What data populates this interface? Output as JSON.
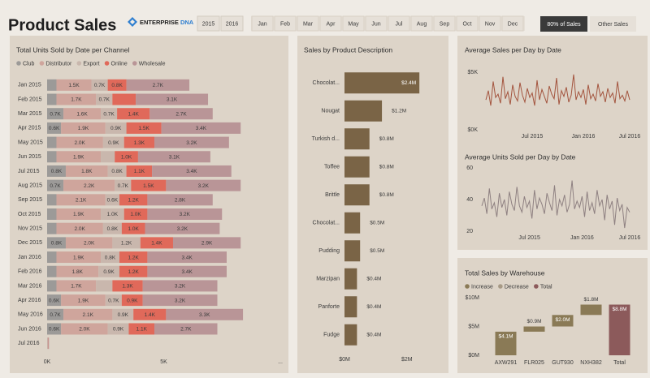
{
  "header": {
    "title": "Product Sales",
    "logo": [
      "ENTERPRISE",
      "DNA"
    ]
  },
  "slicers": {
    "years": [
      "2015",
      "2016"
    ],
    "months": [
      "Jan",
      "Feb",
      "Mar",
      "Apr",
      "May",
      "Jun",
      "Jul",
      "Aug",
      "Sep",
      "Oct",
      "Nov",
      "Dec"
    ],
    "buttons": [
      "80% of Sales",
      "Other Sales"
    ]
  },
  "chart_data": [
    {
      "type": "bar",
      "orientation": "horizontal",
      "stacked": true,
      "title": "Total Units Sold by Date per Channel",
      "categories": [
        "Jan 2015",
        "Feb 2015",
        "Mar 2015",
        "Apr 2015",
        "May 2015",
        "Jun 2015",
        "Jul 2015",
        "Aug 2015",
        "Sep 2015",
        "Oct 2015",
        "Nov 2015",
        "Dec 2015",
        "Jan 2016",
        "Feb 2016",
        "Mar 2016",
        "Apr 2016",
        "May 2016",
        "Jun 2016",
        "Jul 2016"
      ],
      "series": [
        {
          "name": "Club",
          "color": "#9c9a98",
          "values": [
            400,
            400,
            700,
            600,
            400,
            400,
            800,
            700,
            400,
            400,
            400,
            800,
            400,
            400,
            400,
            600,
            700,
            600,
            10
          ],
          "value_labels": [
            null,
            null,
            "0.7K",
            "0.6K",
            null,
            null,
            "0.8K",
            "0.7K",
            null,
            null,
            null,
            "0.8K",
            null,
            null,
            null,
            "0.6K",
            "0.7K",
            "0.6K",
            null
          ]
        },
        {
          "name": "Distributor",
          "color": "#cfa59c",
          "values": [
            1500,
            1700,
            1600,
            1900,
            2000,
            1900,
            1800,
            2200,
            2100,
            1900,
            2000,
            2000,
            1900,
            1800,
            1700,
            1900,
            2100,
            2000,
            20
          ],
          "value_labels": [
            "1.5K",
            "1.7K",
            "1.6K",
            "1.9K",
            "2.0K",
            "1.9K",
            "1.8K",
            "2.2K",
            "2.1K",
            "1.9K",
            "2.0K",
            "2.0K",
            "1.9K",
            "1.8K",
            "1.7K",
            "1.9K",
            "2.1K",
            "2.0K",
            null
          ]
        },
        {
          "name": "Export",
          "color": "#c9b7ad",
          "values": [
            700,
            700,
            700,
            900,
            900,
            600,
            800,
            700,
            600,
            1000,
            800,
            1200,
            800,
            900,
            700,
            700,
            900,
            900,
            10
          ],
          "value_labels": [
            "0.7K",
            "0.7K",
            "0.7K",
            "0.9K",
            "0.9K",
            null,
            "0.8K",
            "0.7K",
            "0.6K",
            "1.0K",
            "0.8K",
            "1.2K",
            "0.8K",
            "0.9K",
            null,
            "0.7K",
            "0.9K",
            "0.9K",
            null
          ]
        },
        {
          "name": "Online",
          "color": "#e0695a",
          "values": [
            800,
            1000,
            1400,
            1500,
            1300,
            1000,
            1100,
            1500,
            1200,
            1000,
            1000,
            1400,
            1200,
            1200,
            1300,
            900,
            1400,
            1100,
            10
          ],
          "value_labels": [
            "0.8K",
            null,
            "1.4K",
            "1.5K",
            "1.3K",
            "1.0K",
            "1.1K",
            "1.5K",
            "1.2K",
            "1.0K",
            "1.0K",
            "1.4K",
            "1.2K",
            "1.2K",
            "1.3K",
            "0.9K",
            "1.4K",
            "1.1K",
            null
          ]
        },
        {
          "name": "Wholesale",
          "color": "#b99597",
          "values": [
            2700,
            3100,
            2700,
            3400,
            3200,
            3100,
            3400,
            3200,
            2800,
            3200,
            3200,
            2900,
            3400,
            3400,
            3200,
            3200,
            3300,
            2700,
            30
          ],
          "value_labels": [
            "2.7K",
            "3.1K",
            "2.7K",
            "3.4K",
            "3.2K",
            "3.1K",
            "3.4K",
            "3.2K",
            "2.8K",
            "3.2K",
            "3.2K",
            "2.9K",
            "3.4K",
            "3.4K",
            "3.2K",
            "3.2K",
            "3.3K",
            "2.7K",
            null
          ]
        }
      ],
      "xlim": [
        0,
        10000
      ],
      "xticks": [
        {
          "value": 0,
          "label": "0K"
        },
        {
          "value": 5000,
          "label": "5K"
        },
        {
          "value": 10000,
          "label": "..."
        }
      ],
      "legend": "top-left"
    },
    {
      "type": "bar",
      "orientation": "horizontal",
      "stacked": false,
      "title": "Sales by Product Description",
      "categories": [
        "Chocolat...",
        "Nougat",
        "Turkish d...",
        "Toffee",
        "Brittle",
        "Chocolat...",
        "Pudding",
        "Marzipan",
        "Panforte",
        "Fudge"
      ],
      "values": [
        2400000,
        1200000,
        800000,
        800000,
        800000,
        500000,
        500000,
        400000,
        400000,
        400000
      ],
      "value_labels": [
        "$2.4M",
        "$1.2M",
        "$0.8M",
        "$0.8M",
        "$0.8M",
        "$0.5M",
        "$0.5M",
        "$0.4M",
        "$0.4M",
        "$0.4M"
      ],
      "color": "#7a6446",
      "xlim": [
        0,
        2500000
      ],
      "xticks": [
        {
          "value": 0,
          "label": "$0M"
        },
        {
          "value": 2000000,
          "label": "$2M"
        }
      ]
    },
    {
      "type": "line",
      "title": "Average Sales per Day by Date",
      "categories": [
        null,
        null,
        null,
        null,
        null,
        null,
        null,
        null,
        null,
        null,
        null,
        null,
        null,
        null,
        null,
        null,
        null,
        null,
        null,
        "Jul 2015",
        null,
        null,
        null,
        null,
        null,
        null,
        null,
        null,
        null,
        null,
        null,
        null,
        null,
        null,
        null,
        null,
        null,
        null,
        null,
        null,
        "Jan 2016",
        null,
        null,
        null,
        null,
        null,
        null,
        null,
        null,
        null,
        null,
        null,
        null,
        null,
        null,
        null,
        null,
        null,
        null,
        "Jul 2016"
      ],
      "values": [
        2600,
        3400,
        2100,
        4200,
        2800,
        3100,
        2300,
        4600,
        2700,
        3300,
        2200,
        3900,
        2900,
        2500,
        4100,
        3000,
        2400,
        3600,
        2800,
        3200,
        2100,
        4300,
        2600,
        3500,
        2900,
        2300,
        3800,
        3100,
        2700,
        4500,
        2200,
        3400,
        2900,
        3700,
        2400,
        3000,
        4800,
        2600,
        3300,
        2800,
        3500,
        2200,
        3900,
        2700,
        3100,
        2500,
        4000,
        2900,
        3300,
        2400,
        3600,
        2800,
        3200,
        2300,
        4200,
        2700,
        3000,
        2500,
        3400,
        2600
      ],
      "color": "#a3543e",
      "ylim": [
        0,
        5000
      ],
      "yticks": [
        {
          "value": 0,
          "label": "$0K"
        },
        {
          "value": 5000,
          "label": "$5K"
        }
      ]
    },
    {
      "type": "line",
      "title": "Average Units Sold per Day by Date",
      "categories": [
        null,
        null,
        null,
        null,
        null,
        null,
        null,
        null,
        null,
        null,
        null,
        null,
        null,
        null,
        null,
        null,
        null,
        null,
        null,
        "Jul 2015",
        null,
        null,
        null,
        null,
        null,
        null,
        null,
        null,
        null,
        null,
        null,
        null,
        null,
        null,
        null,
        null,
        null,
        null,
        null,
        null,
        "Jan 2016",
        null,
        null,
        null,
        null,
        null,
        null,
        null,
        null,
        null,
        null,
        null,
        null,
        null,
        null,
        null,
        null,
        null,
        null,
        "Jul 2016"
      ],
      "values": [
        36,
        41,
        31,
        47,
        34,
        38,
        29,
        44,
        35,
        40,
        30,
        45,
        37,
        33,
        48,
        36,
        32,
        42,
        35,
        39,
        28,
        46,
        34,
        41,
        37,
        31,
        44,
        38,
        33,
        49,
        30,
        40,
        36,
        43,
        32,
        37,
        52,
        34,
        39,
        35,
        42,
        29,
        45,
        33,
        38,
        31,
        46,
        36,
        40,
        27,
        43,
        34,
        39,
        24,
        41,
        33,
        37,
        22,
        35,
        32
      ],
      "color": "#8e8081",
      "ylim": [
        20,
        60
      ],
      "yticks": [
        20,
        40,
        60
      ]
    },
    {
      "type": "waterfall",
      "title": "Total Sales by Warehouse",
      "categories": [
        "AXW291",
        "FLR025",
        "GUT930",
        "NXH382",
        "Total"
      ],
      "values": [
        4100000,
        900000,
        2000000,
        1800000,
        8800000
      ],
      "value_labels": [
        "$4.1M",
        "$0.9M",
        "$2.0M",
        "$1.8M",
        "$8.8M"
      ],
      "legend_items": [
        {
          "name": "Increase",
          "color": "#8a7a56"
        },
        {
          "name": "Decrease",
          "color": "#a79a86"
        },
        {
          "name": "Total",
          "color": "#8c5a5b"
        }
      ],
      "ylim": [
        0,
        10000000
      ],
      "yticks": [
        {
          "value": 0,
          "label": "$0M"
        },
        {
          "value": 5000000,
          "label": "$5M"
        },
        {
          "value": 10000000,
          "label": "$10M"
        }
      ]
    }
  ]
}
